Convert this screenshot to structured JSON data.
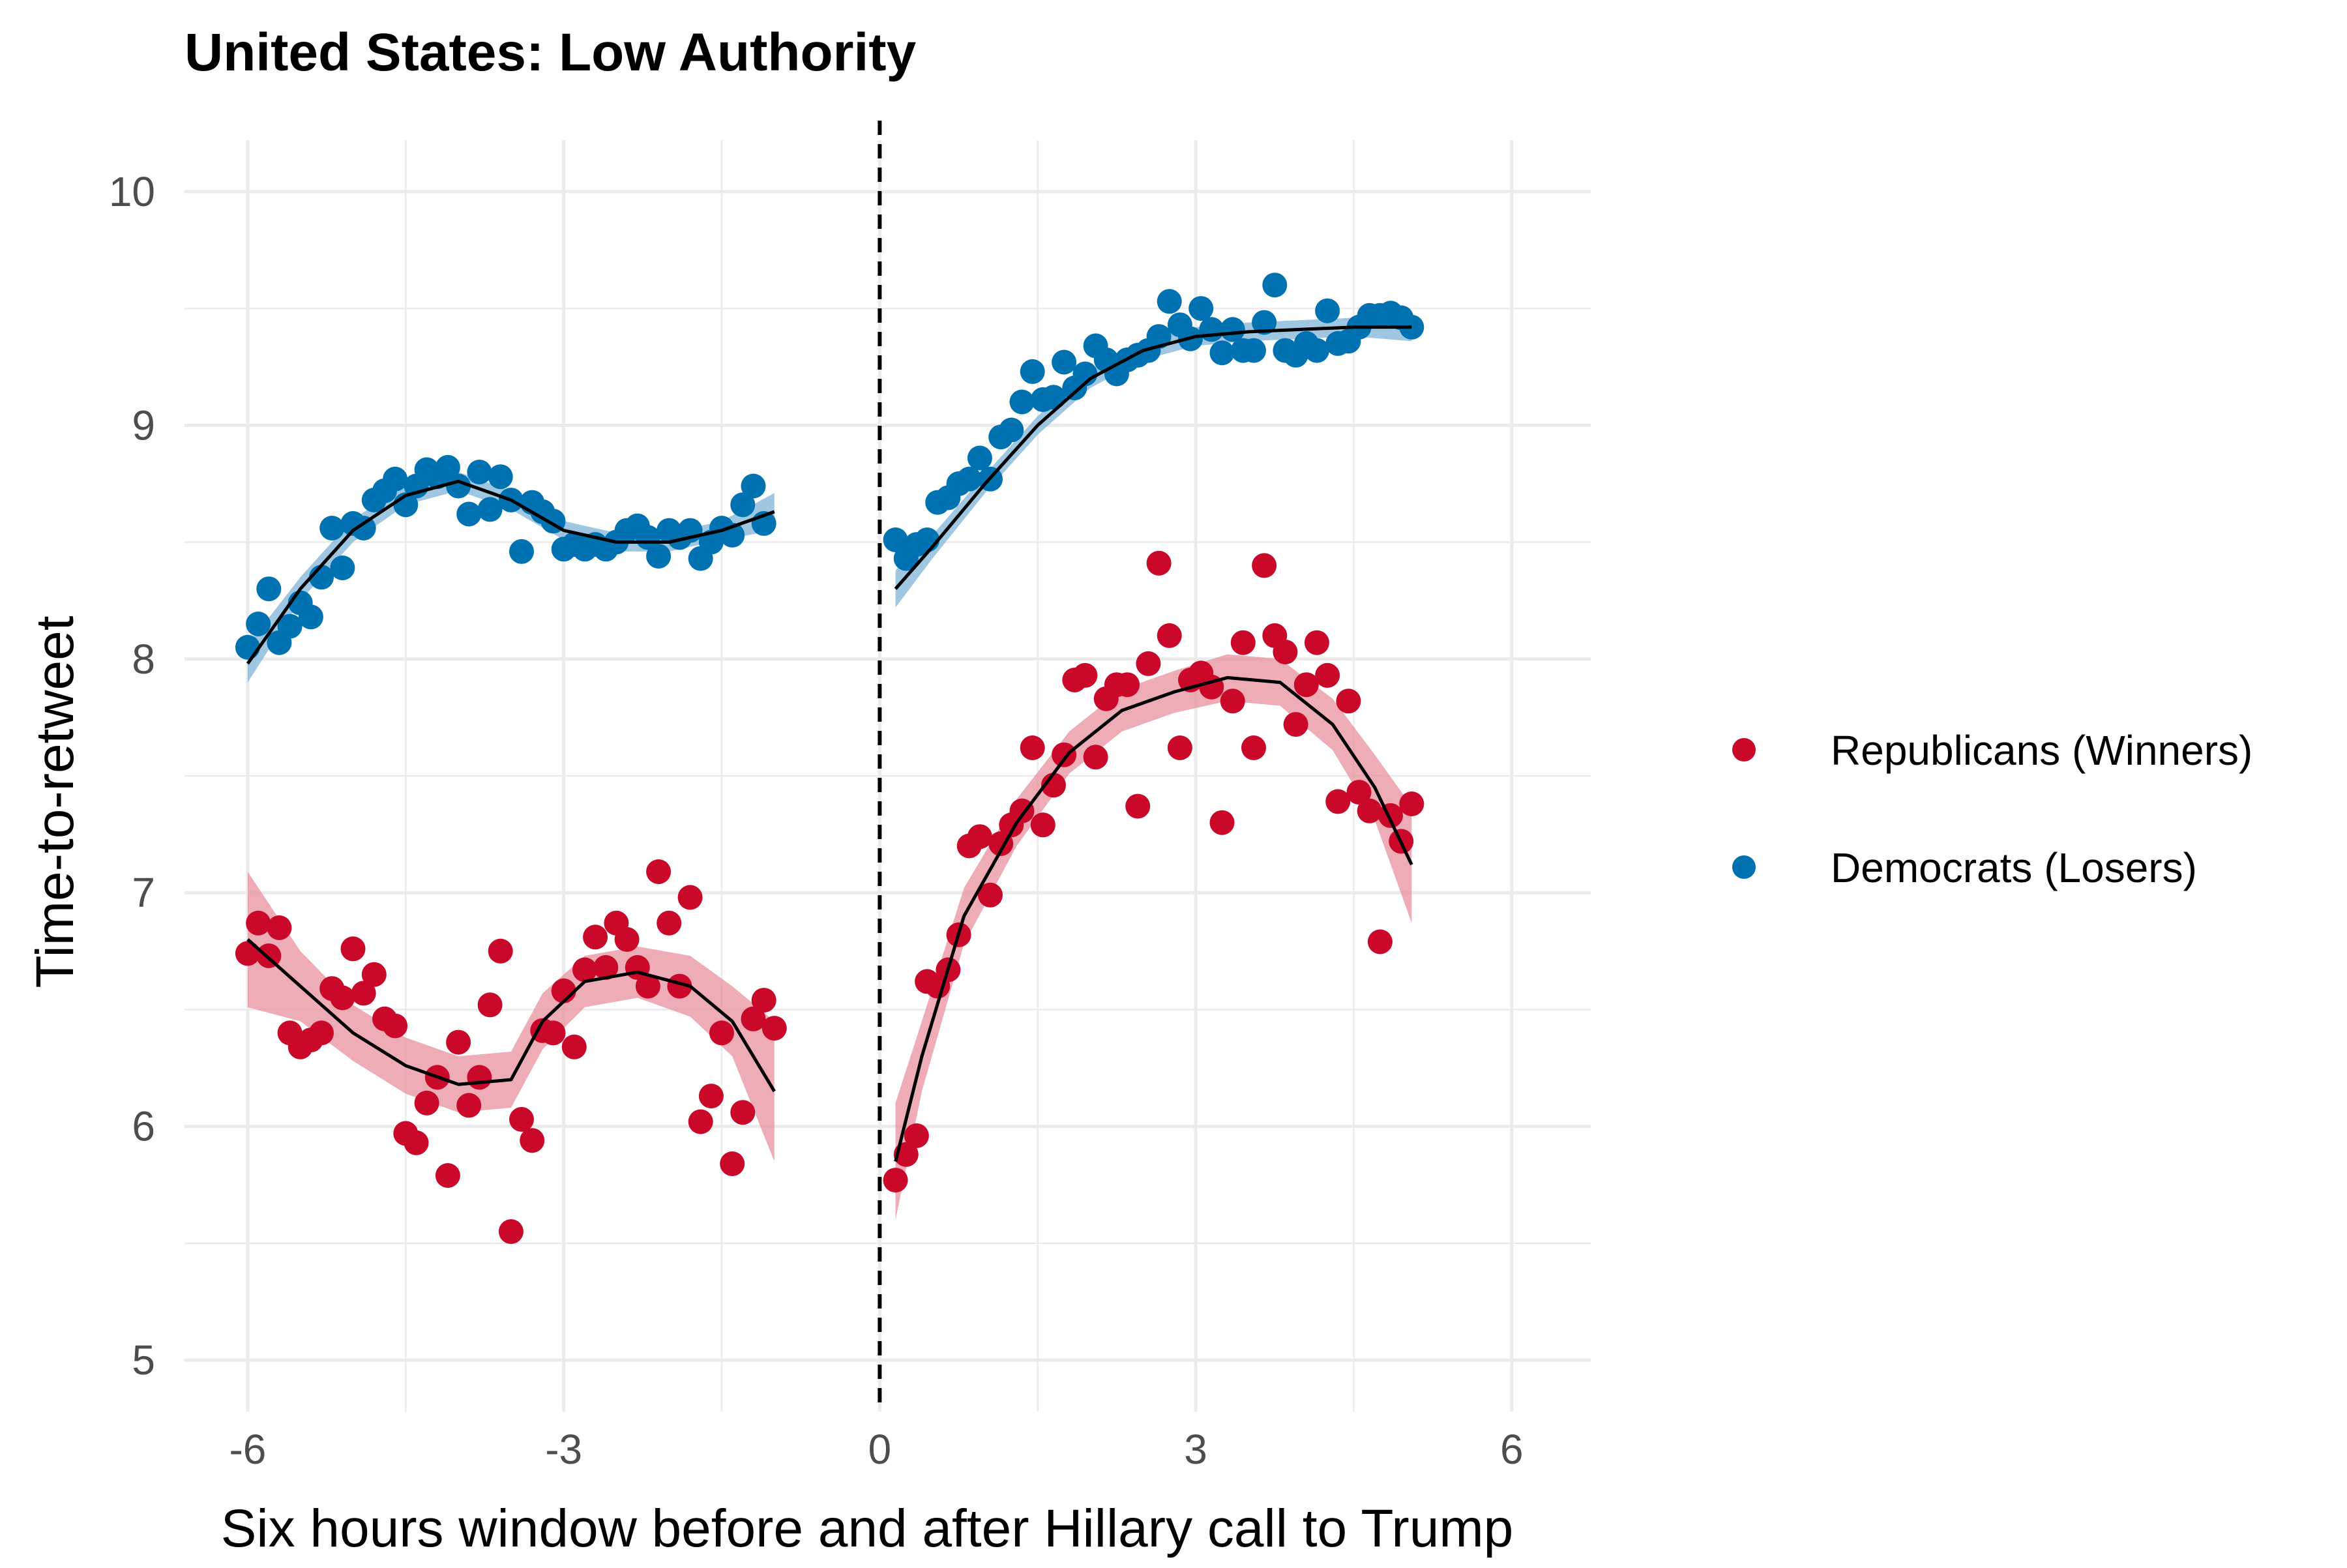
{
  "chart_data": {
    "type": "scatter",
    "title": "United States: Low Authority",
    "xlabel": "Six hours window before and after Hillary call to Trump",
    "ylabel": "Time-to-retweet",
    "xlim": [
      -6.6,
      6.75
    ],
    "ylim": [
      4.78,
      10.22
    ],
    "xticks": [
      -6,
      -3,
      0,
      3,
      6
    ],
    "xtick_labels": [
      "-6",
      "-3",
      "0",
      "3",
      "6"
    ],
    "yticks": [
      5,
      6,
      7,
      8,
      9,
      10
    ],
    "ytick_labels": [
      "5",
      "6",
      "7",
      "8",
      "9",
      "10"
    ],
    "grid": true,
    "legend_position": "right",
    "vline": {
      "x": 0,
      "style": "dashed",
      "color": "#000000"
    },
    "series": [
      {
        "name": "Republicans (Winners)",
        "color": "#c9082a",
        "band_color": "#e8909e",
        "points": [
          [
            -6.0,
            6.74
          ],
          [
            -5.9,
            6.87
          ],
          [
            -5.8,
            6.73
          ],
          [
            -5.7,
            6.85
          ],
          [
            -5.6,
            6.4
          ],
          [
            -5.5,
            6.34
          ],
          [
            -5.4,
            6.37
          ],
          [
            -5.3,
            6.4
          ],
          [
            -5.2,
            6.59
          ],
          [
            -5.1,
            6.55
          ],
          [
            -5.0,
            6.76
          ],
          [
            -4.9,
            6.57
          ],
          [
            -4.8,
            6.65
          ],
          [
            -4.7,
            6.46
          ],
          [
            -4.6,
            6.43
          ],
          [
            -4.5,
            5.97
          ],
          [
            -4.4,
            5.93
          ],
          [
            -4.3,
            6.1
          ],
          [
            -4.2,
            6.21
          ],
          [
            -4.1,
            5.79
          ],
          [
            -4.0,
            6.36
          ],
          [
            -3.9,
            6.09
          ],
          [
            -3.8,
            6.21
          ],
          [
            -3.7,
            6.52
          ],
          [
            -3.6,
            6.75
          ],
          [
            -3.5,
            5.55
          ],
          [
            -3.4,
            6.03
          ],
          [
            -3.3,
            5.94
          ],
          [
            -3.2,
            6.41
          ],
          [
            -3.1,
            6.4
          ],
          [
            -3.0,
            6.58
          ],
          [
            -2.9,
            6.34
          ],
          [
            -2.8,
            6.67
          ],
          [
            -2.7,
            6.81
          ],
          [
            -2.6,
            6.68
          ],
          [
            -2.5,
            6.87
          ],
          [
            -2.4,
            6.8
          ],
          [
            -2.3,
            6.68
          ],
          [
            -2.2,
            6.6
          ],
          [
            -2.1,
            7.09
          ],
          [
            -2.0,
            6.87
          ],
          [
            -1.9,
            6.6
          ],
          [
            -1.8,
            6.98
          ],
          [
            -1.7,
            6.02
          ],
          [
            -1.6,
            6.13
          ],
          [
            -1.5,
            6.4
          ],
          [
            -1.4,
            5.84
          ],
          [
            -1.3,
            6.06
          ],
          [
            -1.2,
            6.46
          ],
          [
            -1.1,
            6.54
          ],
          [
            -1.0,
            6.42
          ],
          [
            0.15,
            5.77
          ],
          [
            0.25,
            5.88
          ],
          [
            0.35,
            5.96
          ],
          [
            0.45,
            6.62
          ],
          [
            0.55,
            6.6
          ],
          [
            0.65,
            6.67
          ],
          [
            0.75,
            6.82
          ],
          [
            0.85,
            7.2
          ],
          [
            0.95,
            7.24
          ],
          [
            1.05,
            6.99
          ],
          [
            1.15,
            7.21
          ],
          [
            1.25,
            7.29
          ],
          [
            1.35,
            7.35
          ],
          [
            1.45,
            7.62
          ],
          [
            1.55,
            7.29
          ],
          [
            1.65,
            7.46
          ],
          [
            1.75,
            7.59
          ],
          [
            1.85,
            7.91
          ],
          [
            1.95,
            7.93
          ],
          [
            2.05,
            7.58
          ],
          [
            2.15,
            7.83
          ],
          [
            2.25,
            7.89
          ],
          [
            2.35,
            7.89
          ],
          [
            2.45,
            7.37
          ],
          [
            2.55,
            7.98
          ],
          [
            2.65,
            8.41
          ],
          [
            2.75,
            8.1
          ],
          [
            2.85,
            7.62
          ],
          [
            2.95,
            7.91
          ],
          [
            3.05,
            7.94
          ],
          [
            3.15,
            7.88
          ],
          [
            3.25,
            7.3
          ],
          [
            3.35,
            7.82
          ],
          [
            3.45,
            8.07
          ],
          [
            3.55,
            7.62
          ],
          [
            3.65,
            8.4
          ],
          [
            3.75,
            8.1
          ],
          [
            3.85,
            8.03
          ],
          [
            3.95,
            7.72
          ],
          [
            4.05,
            7.89
          ],
          [
            4.15,
            8.07
          ],
          [
            4.25,
            7.93
          ],
          [
            4.35,
            7.39
          ],
          [
            4.45,
            7.82
          ],
          [
            4.55,
            7.43
          ],
          [
            4.65,
            7.35
          ],
          [
            4.75,
            6.79
          ],
          [
            4.85,
            7.33
          ],
          [
            4.95,
            7.22
          ],
          [
            5.05,
            7.38
          ]
        ],
        "fit": [
          [
            -6.0,
            6.8
          ],
          [
            -5.5,
            6.6
          ],
          [
            -5.0,
            6.4
          ],
          [
            -4.5,
            6.26
          ],
          [
            -4.0,
            6.18
          ],
          [
            -3.5,
            6.2
          ],
          [
            -3.2,
            6.45
          ],
          [
            -2.8,
            6.62
          ],
          [
            -2.3,
            6.66
          ],
          [
            -1.8,
            6.6
          ],
          [
            -1.4,
            6.45
          ],
          [
            -1.0,
            6.15
          ],
          [
            0.15,
            5.85
          ],
          [
            0.4,
            6.3
          ],
          [
            0.8,
            6.9
          ],
          [
            1.3,
            7.3
          ],
          [
            1.8,
            7.6
          ],
          [
            2.3,
            7.78
          ],
          [
            2.8,
            7.86
          ],
          [
            3.3,
            7.92
          ],
          [
            3.8,
            7.9
          ],
          [
            4.3,
            7.72
          ],
          [
            4.7,
            7.45
          ],
          [
            5.05,
            7.12
          ]
        ],
        "fit_se": [
          [
            -6.0,
            0.29
          ],
          [
            -5.5,
            0.15
          ],
          [
            -5.0,
            0.12
          ],
          [
            -4.5,
            0.12
          ],
          [
            -4.0,
            0.12
          ],
          [
            -3.5,
            0.12
          ],
          [
            -3.2,
            0.12
          ],
          [
            -2.8,
            0.11
          ],
          [
            -2.3,
            0.11
          ],
          [
            -1.8,
            0.13
          ],
          [
            -1.4,
            0.15
          ],
          [
            -1.0,
            0.3
          ],
          [
            0.15,
            0.25
          ],
          [
            0.4,
            0.15
          ],
          [
            0.8,
            0.12
          ],
          [
            1.3,
            0.1
          ],
          [
            1.8,
            0.09
          ],
          [
            2.3,
            0.09
          ],
          [
            2.8,
            0.09
          ],
          [
            3.3,
            0.1
          ],
          [
            3.8,
            0.1
          ],
          [
            4.3,
            0.11
          ],
          [
            4.7,
            0.14
          ],
          [
            5.05,
            0.25
          ]
        ]
      },
      {
        "name": "Democrats (Losers)",
        "color": "#0072b2",
        "band_color": "#7fb4d8",
        "points": [
          [
            -6.0,
            8.05
          ],
          [
            -5.9,
            8.15
          ],
          [
            -5.8,
            8.3
          ],
          [
            -5.7,
            8.07
          ],
          [
            -5.6,
            8.14
          ],
          [
            -5.5,
            8.24
          ],
          [
            -5.4,
            8.18
          ],
          [
            -5.3,
            8.35
          ],
          [
            -5.2,
            8.56
          ],
          [
            -5.1,
            8.39
          ],
          [
            -5.0,
            8.58
          ],
          [
            -4.9,
            8.56
          ],
          [
            -4.8,
            8.68
          ],
          [
            -4.7,
            8.72
          ],
          [
            -4.6,
            8.77
          ],
          [
            -4.5,
            8.66
          ],
          [
            -4.4,
            8.74
          ],
          [
            -4.3,
            8.81
          ],
          [
            -4.2,
            8.78
          ],
          [
            -4.1,
            8.82
          ],
          [
            -4.0,
            8.74
          ],
          [
            -3.9,
            8.62
          ],
          [
            -3.8,
            8.8
          ],
          [
            -3.7,
            8.64
          ],
          [
            -3.6,
            8.78
          ],
          [
            -3.5,
            8.68
          ],
          [
            -3.4,
            8.46
          ],
          [
            -3.3,
            8.67
          ],
          [
            -3.2,
            8.63
          ],
          [
            -3.1,
            8.59
          ],
          [
            -3.0,
            8.47
          ],
          [
            -2.9,
            8.49
          ],
          [
            -2.8,
            8.47
          ],
          [
            -2.7,
            8.49
          ],
          [
            -2.6,
            8.47
          ],
          [
            -2.5,
            8.5
          ],
          [
            -2.4,
            8.55
          ],
          [
            -2.3,
            8.57
          ],
          [
            -2.2,
            8.52
          ],
          [
            -2.1,
            8.44
          ],
          [
            -2.0,
            8.55
          ],
          [
            -1.9,
            8.52
          ],
          [
            -1.8,
            8.55
          ],
          [
            -1.7,
            8.43
          ],
          [
            -1.6,
            8.5
          ],
          [
            -1.5,
            8.56
          ],
          [
            -1.4,
            8.53
          ],
          [
            -1.3,
            8.66
          ],
          [
            -1.2,
            8.74
          ],
          [
            -1.1,
            8.58
          ],
          [
            0.15,
            8.51
          ],
          [
            0.25,
            8.43
          ],
          [
            0.35,
            8.49
          ],
          [
            0.45,
            8.51
          ],
          [
            0.55,
            8.67
          ],
          [
            0.65,
            8.69
          ],
          [
            0.75,
            8.75
          ],
          [
            0.85,
            8.77
          ],
          [
            0.95,
            8.86
          ],
          [
            1.05,
            8.77
          ],
          [
            1.15,
            8.95
          ],
          [
            1.25,
            8.98
          ],
          [
            1.35,
            9.1
          ],
          [
            1.45,
            9.23
          ],
          [
            1.55,
            9.11
          ],
          [
            1.65,
            9.12
          ],
          [
            1.75,
            9.27
          ],
          [
            1.85,
            9.16
          ],
          [
            1.95,
            9.22
          ],
          [
            2.05,
            9.34
          ],
          [
            2.15,
            9.28
          ],
          [
            2.25,
            9.22
          ],
          [
            2.35,
            9.28
          ],
          [
            2.45,
            9.3
          ],
          [
            2.55,
            9.32
          ],
          [
            2.65,
            9.38
          ],
          [
            2.75,
            9.53
          ],
          [
            2.85,
            9.43
          ],
          [
            2.95,
            9.37
          ],
          [
            3.05,
            9.5
          ],
          [
            3.15,
            9.41
          ],
          [
            3.25,
            9.31
          ],
          [
            3.35,
            9.41
          ],
          [
            3.45,
            9.32
          ],
          [
            3.55,
            9.32
          ],
          [
            3.65,
            9.44
          ],
          [
            3.75,
            9.6
          ],
          [
            3.85,
            9.32
          ],
          [
            3.95,
            9.3
          ],
          [
            4.05,
            9.35
          ],
          [
            4.15,
            9.32
          ],
          [
            4.25,
            9.49
          ],
          [
            4.35,
            9.35
          ],
          [
            4.45,
            9.36
          ],
          [
            4.55,
            9.42
          ],
          [
            4.65,
            9.47
          ],
          [
            4.75,
            9.47
          ],
          [
            4.85,
            9.48
          ],
          [
            4.95,
            9.46
          ],
          [
            5.05,
            9.42
          ]
        ],
        "fit": [
          [
            -6.0,
            7.98
          ],
          [
            -5.5,
            8.3
          ],
          [
            -5.0,
            8.55
          ],
          [
            -4.5,
            8.7
          ],
          [
            -4.0,
            8.76
          ],
          [
            -3.5,
            8.68
          ],
          [
            -3.0,
            8.55
          ],
          [
            -2.5,
            8.5
          ],
          [
            -2.0,
            8.5
          ],
          [
            -1.5,
            8.55
          ],
          [
            -1.0,
            8.63
          ],
          [
            0.15,
            8.3
          ],
          [
            0.5,
            8.48
          ],
          [
            1.0,
            8.75
          ],
          [
            1.5,
            9.0
          ],
          [
            2.0,
            9.2
          ],
          [
            2.5,
            9.32
          ],
          [
            3.0,
            9.38
          ],
          [
            3.5,
            9.4
          ],
          [
            4.0,
            9.41
          ],
          [
            4.5,
            9.42
          ],
          [
            5.05,
            9.42
          ]
        ],
        "fit_se": [
          [
            -6.0,
            0.08
          ],
          [
            -5.5,
            0.05
          ],
          [
            -5.0,
            0.05
          ],
          [
            -4.5,
            0.04
          ],
          [
            -4.0,
            0.04
          ],
          [
            -3.5,
            0.04
          ],
          [
            -3.0,
            0.04
          ],
          [
            -2.5,
            0.04
          ],
          [
            -2.0,
            0.04
          ],
          [
            -1.5,
            0.04
          ],
          [
            -1.0,
            0.08
          ],
          [
            0.15,
            0.08
          ],
          [
            0.5,
            0.05
          ],
          [
            1.0,
            0.04
          ],
          [
            1.5,
            0.04
          ],
          [
            2.0,
            0.04
          ],
          [
            2.5,
            0.04
          ],
          [
            3.0,
            0.04
          ],
          [
            3.5,
            0.04
          ],
          [
            4.0,
            0.04
          ],
          [
            4.5,
            0.04
          ],
          [
            5.05,
            0.06
          ]
        ]
      }
    ]
  }
}
